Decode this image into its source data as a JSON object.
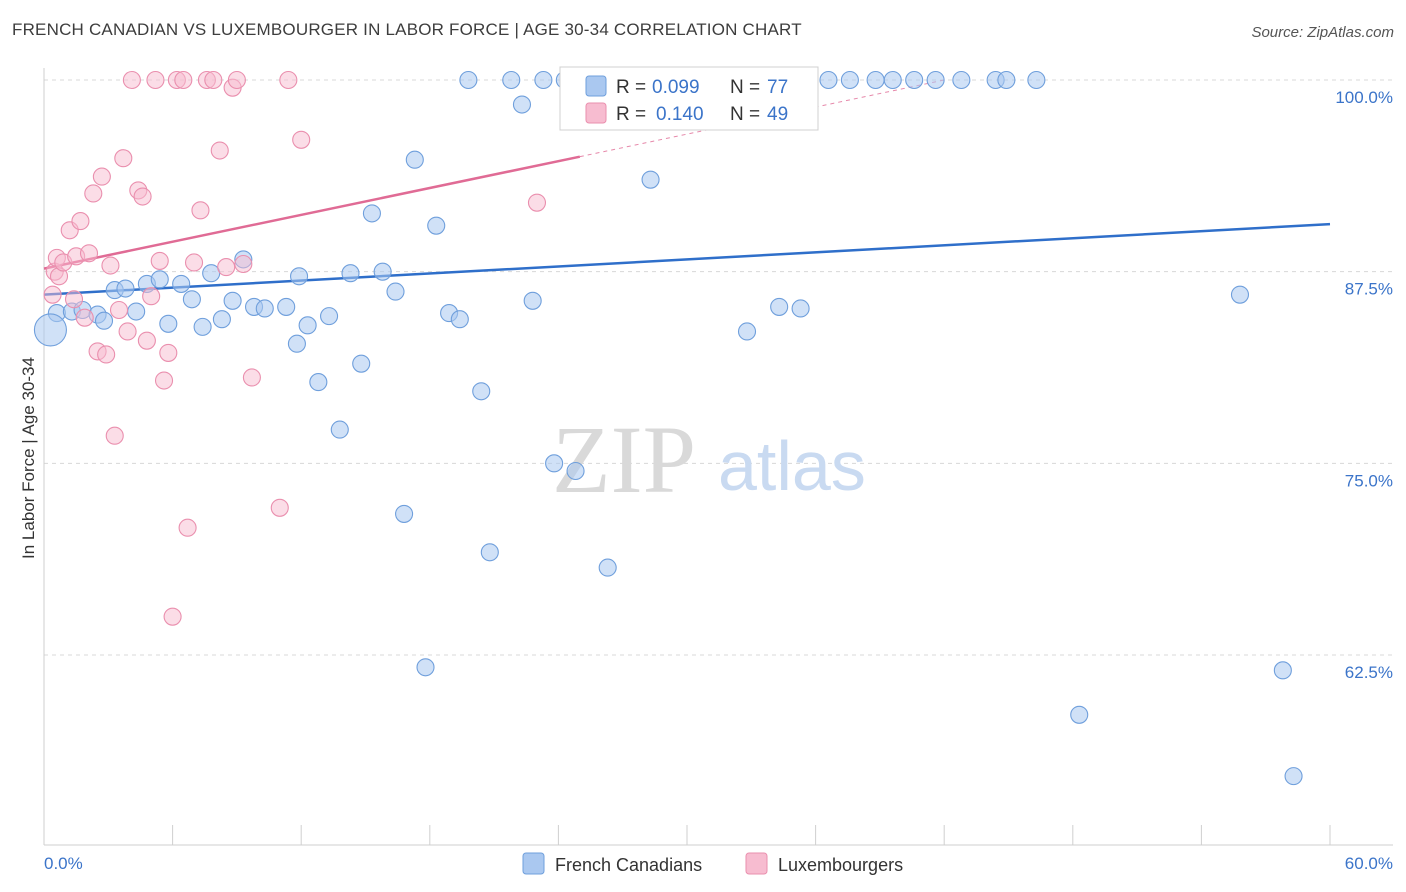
{
  "title": "FRENCH CANADIAN VS LUXEMBOURGER IN LABOR FORCE | AGE 30-34 CORRELATION CHART",
  "source": "Source: ZipAtlas.com",
  "watermark": {
    "part1": "ZIP",
    "part2": "atlas"
  },
  "colors": {
    "blue_fill": "#aac8f0",
    "blue_stroke": "#6f9fdc",
    "blue_line": "#2f6fca",
    "pink_fill": "#f7bcd0",
    "pink_stroke": "#ea8fae",
    "pink_line": "#e06b95",
    "grid": "#d8d8d8",
    "tick_text": "#3b74c9"
  },
  "chart_data": {
    "type": "scatter",
    "xlabel": "",
    "ylabel": "In Labor Force | Age 30-34",
    "xlim": [
      0,
      60
    ],
    "ylim": [
      50,
      100
    ],
    "x_tick_labels": [
      "0.0%",
      "60.0%"
    ],
    "y_ticks": [
      62.5,
      75.0,
      87.5,
      100.0
    ],
    "y_tick_labels": [
      "62.5%",
      "75.0%",
      "87.5%",
      "100.0%"
    ],
    "grid": true,
    "legend_position": "top-center",
    "legend": [
      {
        "series": "French Canadians",
        "r_label": "R =",
        "r_value": "0.099",
        "n_label": "N =",
        "n_value": "77"
      },
      {
        "series": "Luxembourgers",
        "r_label": "R =",
        "r_value": "0.140",
        "n_label": "N =",
        "n_value": "49"
      }
    ],
    "series": [
      {
        "name": "French Canadians",
        "trend": {
          "x0": 0,
          "y0": 86.0,
          "x1": 60,
          "y1": 90.6
        },
        "points": [
          [
            0.6,
            84.8
          ],
          [
            1.3,
            84.9
          ],
          [
            1.8,
            85.0
          ],
          [
            2.5,
            84.7
          ],
          [
            2.8,
            84.3
          ],
          [
            3.3,
            86.3
          ],
          [
            3.8,
            86.4
          ],
          [
            4.3,
            84.9
          ],
          [
            4.8,
            86.7
          ],
          [
            5.4,
            87.0
          ],
          [
            5.8,
            84.1
          ],
          [
            6.4,
            86.7
          ],
          [
            6.9,
            85.7
          ],
          [
            7.4,
            83.9
          ],
          [
            7.8,
            87.4
          ],
          [
            8.3,
            84.4
          ],
          [
            8.8,
            85.6
          ],
          [
            9.3,
            88.3
          ],
          [
            9.8,
            85.2
          ],
          [
            10.3,
            85.1
          ],
          [
            11.3,
            85.2
          ],
          [
            11.8,
            82.8
          ],
          [
            11.9,
            87.2
          ],
          [
            12.3,
            84.0
          ],
          [
            12.8,
            80.3
          ],
          [
            13.3,
            84.6
          ],
          [
            13.8,
            77.2
          ],
          [
            14.3,
            87.4
          ],
          [
            14.8,
            81.5
          ],
          [
            15.3,
            91.3
          ],
          [
            15.8,
            87.5
          ],
          [
            16.4,
            86.2
          ],
          [
            16.8,
            71.7
          ],
          [
            17.3,
            94.8
          ],
          [
            17.8,
            61.7
          ],
          [
            18.3,
            90.5
          ],
          [
            18.9,
            84.8
          ],
          [
            19.4,
            84.4
          ],
          [
            19.8,
            100
          ],
          [
            20.4,
            79.7
          ],
          [
            20.8,
            69.2
          ],
          [
            21.8,
            100
          ],
          [
            22.3,
            98.4
          ],
          [
            22.8,
            85.6
          ],
          [
            23.3,
            100
          ],
          [
            23.8,
            75.0
          ],
          [
            24.3,
            100
          ],
          [
            24.8,
            74.5
          ],
          [
            25.8,
            100
          ],
          [
            26.3,
            68.2
          ],
          [
            27.3,
            100
          ],
          [
            28.3,
            93.5
          ],
          [
            29.3,
            100
          ],
          [
            30.3,
            100
          ],
          [
            31.3,
            100
          ],
          [
            32.3,
            100
          ],
          [
            32.8,
            83.6
          ],
          [
            34.3,
            85.2
          ],
          [
            35.3,
            85.1
          ],
          [
            36.6,
            100
          ],
          [
            37.6,
            100
          ],
          [
            38.8,
            100
          ],
          [
            39.6,
            100
          ],
          [
            40.6,
            100
          ],
          [
            41.6,
            100
          ],
          [
            42.8,
            100
          ],
          [
            44.4,
            100
          ],
          [
            44.9,
            100
          ],
          [
            46.3,
            100
          ],
          [
            48.3,
            58.6
          ],
          [
            55.8,
            86.0
          ],
          [
            57.8,
            61.5
          ],
          [
            58.3,
            54.6
          ]
        ]
      },
      {
        "name": "Luxembourgers",
        "trend": {
          "x0": 0,
          "y0": 87.7,
          "x1": 25,
          "y1": 95.0,
          "dash_to_x": 42,
          "dash_to_y": 100
        },
        "points": [
          [
            0.4,
            86.0
          ],
          [
            0.5,
            87.5
          ],
          [
            0.6,
            88.4
          ],
          [
            0.7,
            87.2
          ],
          [
            0.9,
            88.1
          ],
          [
            1.2,
            90.2
          ],
          [
            1.4,
            85.7
          ],
          [
            1.5,
            88.5
          ],
          [
            1.7,
            90.8
          ],
          [
            1.9,
            84.5
          ],
          [
            2.1,
            88.7
          ],
          [
            2.3,
            92.6
          ],
          [
            2.5,
            82.3
          ],
          [
            2.7,
            93.7
          ],
          [
            2.9,
            82.1
          ],
          [
            3.1,
            87.9
          ],
          [
            3.3,
            76.8
          ],
          [
            3.5,
            85.0
          ],
          [
            3.7,
            94.9
          ],
          [
            3.9,
            83.6
          ],
          [
            4.1,
            100
          ],
          [
            4.4,
            92.8
          ],
          [
            4.6,
            92.4
          ],
          [
            4.8,
            83.0
          ],
          [
            5.0,
            85.9
          ],
          [
            5.2,
            100
          ],
          [
            5.4,
            88.2
          ],
          [
            5.6,
            80.4
          ],
          [
            5.8,
            82.2
          ],
          [
            6.0,
            65.0
          ],
          [
            6.2,
            100
          ],
          [
            6.5,
            100
          ],
          [
            6.7,
            70.8
          ],
          [
            7.0,
            88.1
          ],
          [
            7.3,
            91.5
          ],
          [
            7.6,
            100
          ],
          [
            7.9,
            100
          ],
          [
            8.2,
            95.4
          ],
          [
            8.5,
            87.8
          ],
          [
            8.8,
            99.5
          ],
          [
            9.0,
            100
          ],
          [
            9.3,
            88.0
          ],
          [
            9.7,
            80.6
          ],
          [
            11.0,
            72.1
          ],
          [
            11.4,
            100
          ],
          [
            12.0,
            96.1
          ],
          [
            23.0,
            92.0
          ]
        ]
      }
    ]
  }
}
